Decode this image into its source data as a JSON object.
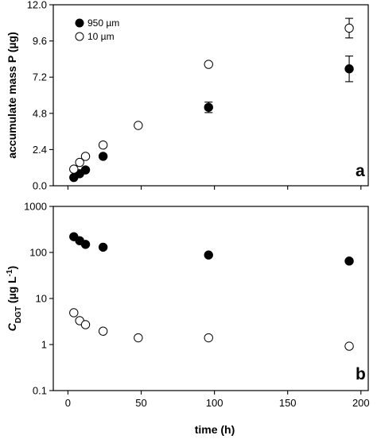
{
  "chart_data": [
    {
      "type": "scatter",
      "panel_label": "a",
      "ylabel": "accumulate mass P (µg)",
      "xlim": [
        -10,
        205
      ],
      "ylim": [
        0,
        12
      ],
      "yticks": [
        "0.0",
        "2.4",
        "4.8",
        "7.2",
        "9.6",
        "12.0"
      ],
      "ytick_values": [
        0,
        2.4,
        4.8,
        7.2,
        9.6,
        12.0
      ],
      "grid": false,
      "legend_position": "top-left",
      "series": [
        {
          "name": "950 µm",
          "marker": "filled-circle",
          "x": [
            4,
            8,
            12,
            24,
            96,
            192
          ],
          "y": [
            0.55,
            0.8,
            1.05,
            1.95,
            5.2,
            7.75
          ],
          "error": [
            0,
            0,
            0,
            0,
            0.35,
            0.85
          ]
        },
        {
          "name": "10 µm",
          "marker": "open-circle",
          "x": [
            4,
            8,
            12,
            24,
            48,
            96,
            192
          ],
          "y": [
            1.1,
            1.55,
            1.95,
            2.7,
            4.0,
            8.05,
            10.45
          ],
          "error": [
            0,
            0,
            0,
            0,
            0,
            0,
            0.65
          ]
        }
      ]
    },
    {
      "type": "scatter",
      "panel_label": "b",
      "ylabel_main": "C",
      "ylabel_sub": "DGT",
      "ylabel_rest": " (µg L",
      "ylabel_sup": "-1",
      "ylabel_end": ")",
      "xlabel": "time (h)",
      "xlim": [
        -10,
        205
      ],
      "ylim": [
        0.1,
        1000
      ],
      "yscale": "log",
      "xticks": [
        "0",
        "50",
        "100",
        "150",
        "200"
      ],
      "xtick_values": [
        0,
        50,
        100,
        150,
        200
      ],
      "yticks": [
        "0.1",
        "1",
        "10",
        "100",
        "1000"
      ],
      "ytick_values": [
        0.1,
        1,
        10,
        100,
        1000
      ],
      "grid": false,
      "series": [
        {
          "marker": "filled-circle",
          "x": [
            4,
            8,
            12,
            24,
            96,
            192
          ],
          "y": [
            220,
            180,
            150,
            130,
            88,
            65
          ]
        },
        {
          "marker": "open-circle",
          "x": [
            4,
            8,
            12,
            24,
            48,
            96,
            192
          ],
          "y": [
            4.9,
            3.3,
            2.7,
            1.95,
            1.4,
            1.4,
            0.92
          ]
        }
      ]
    }
  ]
}
